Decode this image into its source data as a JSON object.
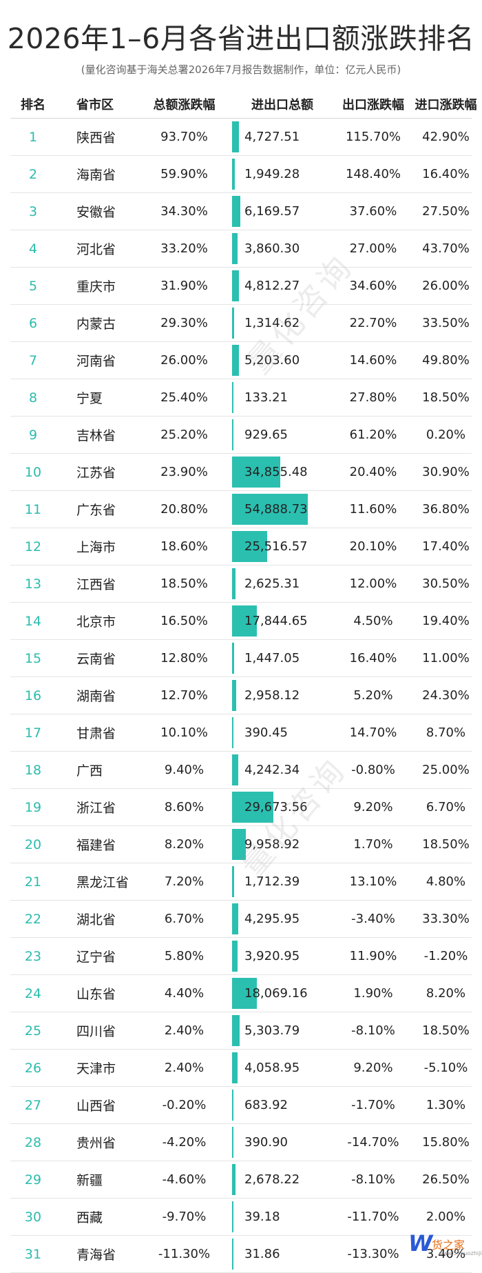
{
  "title": "2026年1–6月各省进出口额涨跌排名",
  "subtitle": "(量化咨询基于海关总署2026年7月报告数据制作，单位：亿元人民币)",
  "watermark_text": "量化咨询",
  "logo": {
    "mark": "W",
    "text": "货之家",
    "url": "www.51huozhijia.com"
  },
  "colors": {
    "bar": "#2bbfb0",
    "rank": "#2bbbad",
    "title": "#2b2b2b"
  },
  "chart_data": {
    "type": "table",
    "columns": [
      "排名",
      "省市区",
      "总额涨跌幅",
      "进出口总额",
      "出口涨跌幅",
      "进口涨跌幅"
    ],
    "bar_column": "进出口总额",
    "bar_max": 54888.73,
    "rows": [
      {
        "rank": "1",
        "province": "陕西省",
        "total_change": "93.70%",
        "value": 4727.51,
        "value_label": "4,727.51",
        "export_change": "115.70%",
        "import_change": "42.90%"
      },
      {
        "rank": "2",
        "province": "海南省",
        "total_change": "59.90%",
        "value": 1949.28,
        "value_label": "1,949.28",
        "export_change": "148.40%",
        "import_change": "16.40%"
      },
      {
        "rank": "3",
        "province": "安徽省",
        "total_change": "34.30%",
        "value": 6169.57,
        "value_label": "6,169.57",
        "export_change": "37.60%",
        "import_change": "27.50%"
      },
      {
        "rank": "4",
        "province": "河北省",
        "total_change": "33.20%",
        "value": 3860.3,
        "value_label": "3,860.30",
        "export_change": "27.00%",
        "import_change": "43.70%"
      },
      {
        "rank": "5",
        "province": "重庆市",
        "total_change": "31.90%",
        "value": 4812.27,
        "value_label": "4,812.27",
        "export_change": "34.60%",
        "import_change": "26.00%"
      },
      {
        "rank": "6",
        "province": "内蒙古",
        "total_change": "29.30%",
        "value": 1314.62,
        "value_label": "1,314.62",
        "export_change": "22.70%",
        "import_change": "33.50%"
      },
      {
        "rank": "7",
        "province": "河南省",
        "total_change": "26.00%",
        "value": 5203.6,
        "value_label": "5,203.60",
        "export_change": "14.60%",
        "import_change": "49.80%"
      },
      {
        "rank": "8",
        "province": "宁夏",
        "total_change": "25.40%",
        "value": 133.21,
        "value_label": "133.21",
        "export_change": "27.80%",
        "import_change": "18.50%"
      },
      {
        "rank": "9",
        "province": "吉林省",
        "total_change": "25.20%",
        "value": 929.65,
        "value_label": "929.65",
        "export_change": "61.20%",
        "import_change": "0.20%"
      },
      {
        "rank": "10",
        "province": "江苏省",
        "total_change": "23.90%",
        "value": 34855.48,
        "value_label": "34,855.48",
        "export_change": "20.40%",
        "import_change": "30.90%"
      },
      {
        "rank": "11",
        "province": "广东省",
        "total_change": "20.80%",
        "value": 54888.73,
        "value_label": "54,888.73",
        "export_change": "11.60%",
        "import_change": "36.80%"
      },
      {
        "rank": "12",
        "province": "上海市",
        "total_change": "18.60%",
        "value": 25516.57,
        "value_label": "25,516.57",
        "export_change": "20.10%",
        "import_change": "17.40%"
      },
      {
        "rank": "13",
        "province": "江西省",
        "total_change": "18.50%",
        "value": 2625.31,
        "value_label": "2,625.31",
        "export_change": "12.00%",
        "import_change": "30.50%"
      },
      {
        "rank": "14",
        "province": "北京市",
        "total_change": "16.50%",
        "value": 17844.65,
        "value_label": "17,844.65",
        "export_change": "4.50%",
        "import_change": "19.40%"
      },
      {
        "rank": "15",
        "province": "云南省",
        "total_change": "12.80%",
        "value": 1447.05,
        "value_label": "1,447.05",
        "export_change": "16.40%",
        "import_change": "11.00%"
      },
      {
        "rank": "16",
        "province": "湖南省",
        "total_change": "12.70%",
        "value": 2958.12,
        "value_label": "2,958.12",
        "export_change": "5.20%",
        "import_change": "24.30%"
      },
      {
        "rank": "17",
        "province": "甘肃省",
        "total_change": "10.10%",
        "value": 390.45,
        "value_label": "390.45",
        "export_change": "14.70%",
        "import_change": "8.70%"
      },
      {
        "rank": "18",
        "province": "广西",
        "total_change": "9.40%",
        "value": 4242.34,
        "value_label": "4,242.34",
        "export_change": "-0.80%",
        "import_change": "25.00%"
      },
      {
        "rank": "19",
        "province": "浙江省",
        "total_change": "8.60%",
        "value": 29673.56,
        "value_label": "29,673.56",
        "export_change": "9.20%",
        "import_change": "6.70%"
      },
      {
        "rank": "20",
        "province": "福建省",
        "total_change": "8.20%",
        "value": 9958.92,
        "value_label": "9,958.92",
        "export_change": "1.70%",
        "import_change": "18.50%"
      },
      {
        "rank": "21",
        "province": "黑龙江省",
        "total_change": "7.20%",
        "value": 1712.39,
        "value_label": "1,712.39",
        "export_change": "13.10%",
        "import_change": "4.80%"
      },
      {
        "rank": "22",
        "province": "湖北省",
        "total_change": "6.70%",
        "value": 4295.95,
        "value_label": "4,295.95",
        "export_change": "-3.40%",
        "import_change": "33.30%"
      },
      {
        "rank": "23",
        "province": "辽宁省",
        "total_change": "5.80%",
        "value": 3920.95,
        "value_label": "3,920.95",
        "export_change": "11.90%",
        "import_change": "-1.20%"
      },
      {
        "rank": "24",
        "province": "山东省",
        "total_change": "4.40%",
        "value": 18069.16,
        "value_label": "18,069.16",
        "export_change": "1.90%",
        "import_change": "8.20%"
      },
      {
        "rank": "25",
        "province": "四川省",
        "total_change": "2.40%",
        "value": 5303.79,
        "value_label": "5,303.79",
        "export_change": "-8.10%",
        "import_change": "18.50%"
      },
      {
        "rank": "26",
        "province": "天津市",
        "total_change": "2.40%",
        "value": 4058.95,
        "value_label": "4,058.95",
        "export_change": "9.20%",
        "import_change": "-5.10%"
      },
      {
        "rank": "27",
        "province": "山西省",
        "total_change": "-0.20%",
        "value": 683.92,
        "value_label": "683.92",
        "export_change": "-1.70%",
        "import_change": "1.30%"
      },
      {
        "rank": "28",
        "province": "贵州省",
        "total_change": "-4.20%",
        "value": 390.9,
        "value_label": "390.90",
        "export_change": "-14.70%",
        "import_change": "15.80%"
      },
      {
        "rank": "29",
        "province": "新疆",
        "total_change": "-4.60%",
        "value": 2678.22,
        "value_label": "2,678.22",
        "export_change": "-8.10%",
        "import_change": "26.50%"
      },
      {
        "rank": "30",
        "province": "西藏",
        "total_change": "-9.70%",
        "value": 39.18,
        "value_label": "39.18",
        "export_change": "-11.70%",
        "import_change": "2.00%"
      },
      {
        "rank": "31",
        "province": "青海省",
        "total_change": "-11.30%",
        "value": 31.86,
        "value_label": "31.86",
        "export_change": "-13.30%",
        "import_change": "3.40%"
      }
    ]
  }
}
